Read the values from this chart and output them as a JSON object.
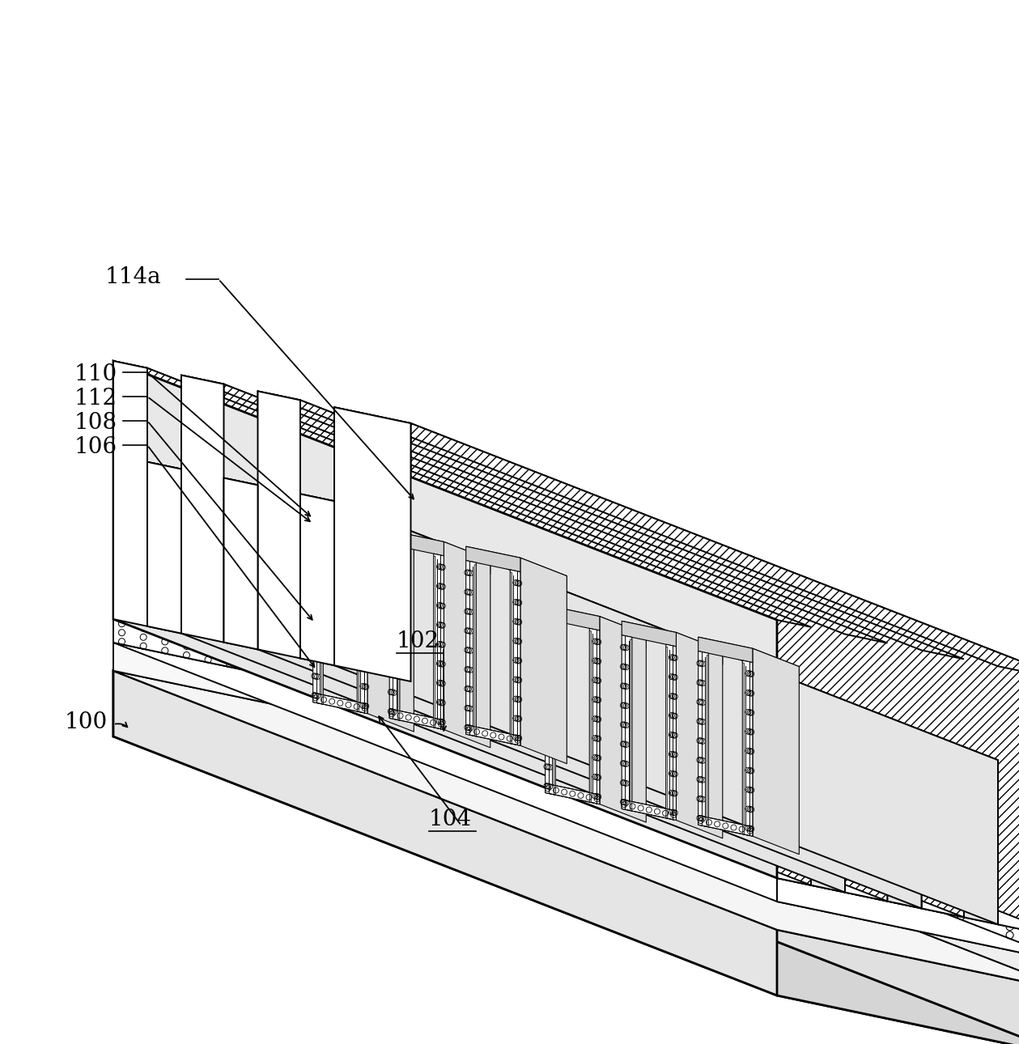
{
  "background_color": "#ffffff",
  "fig_width": 12.59,
  "fig_height": 12.9,
  "lw_thick": 2.0,
  "lw_med": 1.4,
  "lw_thin": 0.8,
  "label_fontsize": 20
}
